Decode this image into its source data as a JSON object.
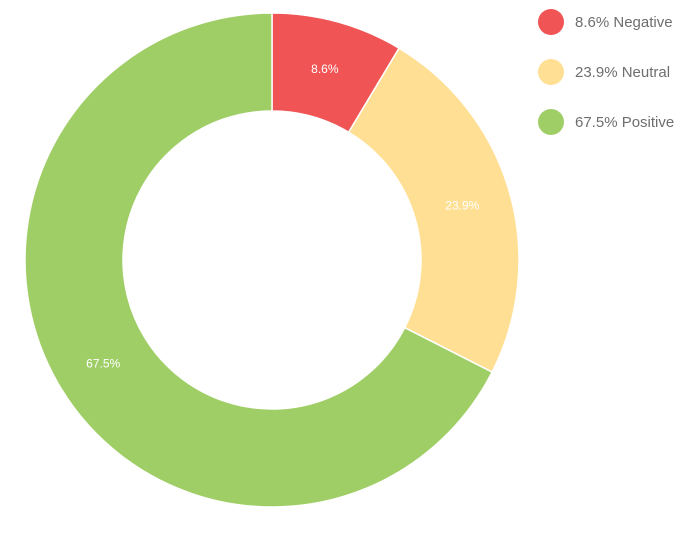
{
  "chart_data": {
    "type": "pie",
    "variant": "donut",
    "categories": [
      "Negative",
      "Neutral",
      "Positive"
    ],
    "values": [
      8.6,
      23.9,
      67.5
    ],
    "unit": "%",
    "colors": [
      "#f05454",
      "#ffdf93",
      "#9fce67"
    ],
    "data_labels": [
      "8.6%",
      "23.9%",
      "67.5%"
    ],
    "legend_position": "top-right",
    "legend": [
      {
        "label": "8.6% Negative",
        "color": "#f05454"
      },
      {
        "label": "23.9% Neutral",
        "color": "#ffdf93"
      },
      {
        "label": "67.5% Positive",
        "color": "#9fce67"
      }
    ]
  }
}
